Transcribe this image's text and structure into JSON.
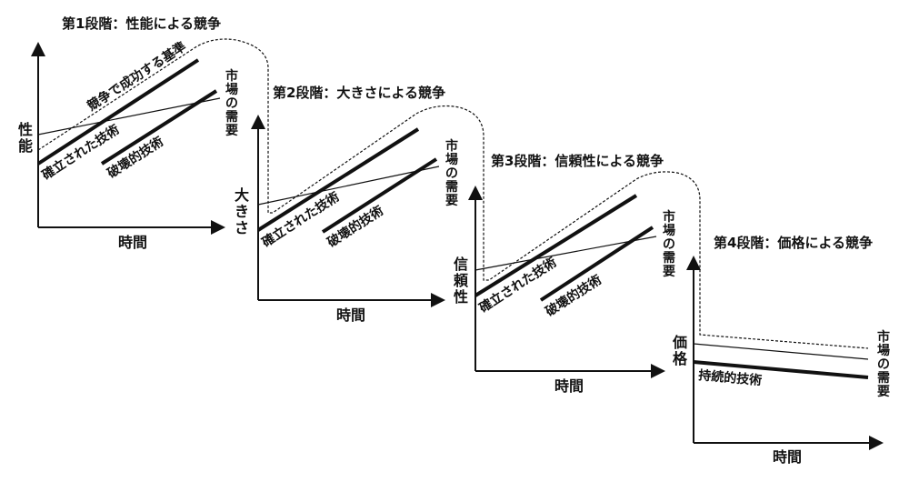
{
  "stages": [
    {
      "title": "第1段階：性能による競争",
      "y_label": [
        "性",
        "能"
      ],
      "x_label": "時間",
      "established": "確立された技術",
      "disruptive": "破壊的技術",
      "demand": [
        "市",
        "場",
        "の",
        "需",
        "要"
      ],
      "standard": "競争で成功する基準"
    },
    {
      "title": "第2段階：大きさによる競争",
      "y_label": [
        "大",
        "き",
        "さ"
      ],
      "x_label": "時間",
      "established": "確立された技術",
      "disruptive": "破壊的技術",
      "demand": [
        "市",
        "場",
        "の",
        "需",
        "要"
      ]
    },
    {
      "title": "第3段階：信頼性による競争",
      "y_label": [
        "信",
        "頼",
        "性"
      ],
      "x_label": "時間",
      "established": "確立された技術",
      "disruptive": "破壊的技術",
      "demand": [
        "市",
        "場",
        "の",
        "需",
        "要"
      ]
    },
    {
      "title": "第4段階：価格による競争",
      "y_label": [
        "価",
        "格"
      ],
      "x_label": "時間",
      "sustaining": "持続的技術",
      "demand": [
        "市",
        "場",
        "の",
        "需",
        "要"
      ]
    }
  ]
}
